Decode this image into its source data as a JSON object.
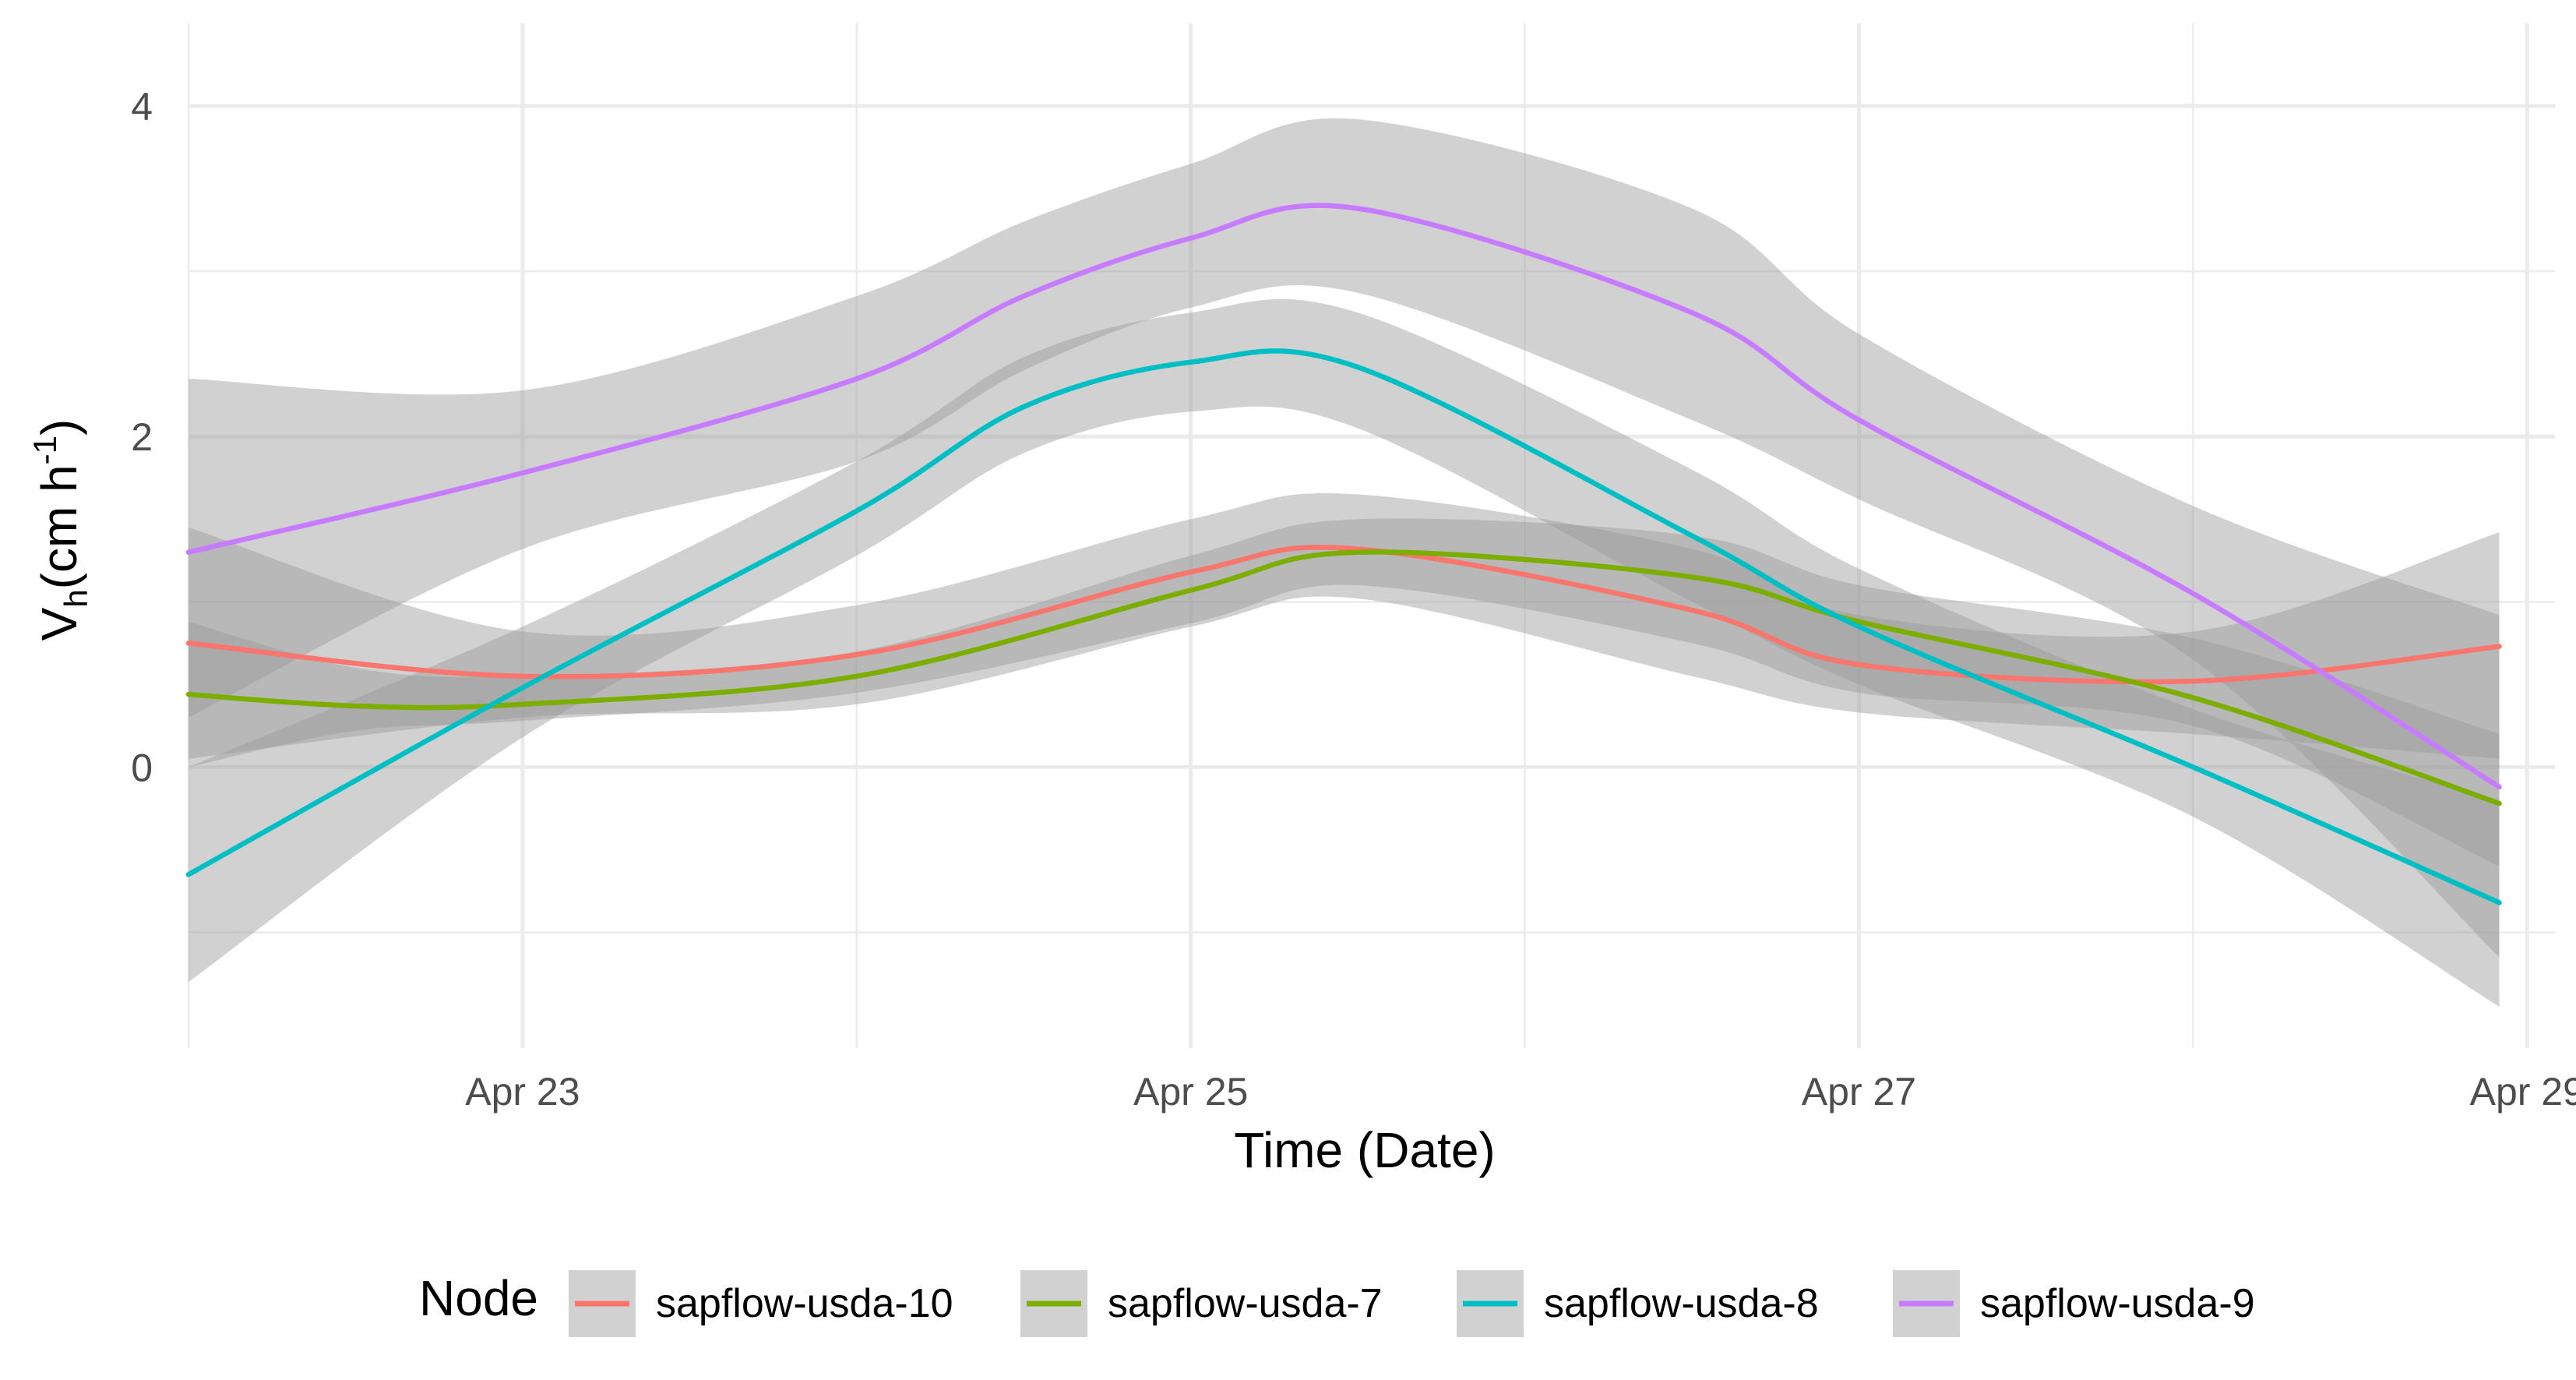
{
  "chart_data": {
    "type": "line",
    "xlabel": "Time (Date)",
    "ylabel": {
      "main": "V",
      "sub": "h",
      "unit_open": "(cm h",
      "unit_sup": "-1",
      "unit_close": ")"
    },
    "x_ticks": [
      "Apr 23",
      "Apr 25",
      "Apr 27",
      "Apr 29"
    ],
    "x_tick_dates": [
      "2023-04-23",
      "2023-04-25",
      "2023-04-27",
      "2023-04-29"
    ],
    "xlim": [
      "2023-04-22 00:00",
      "2023-04-29 02:00"
    ],
    "y_ticks": [
      "0",
      "2",
      "4"
    ],
    "ylim": [
      -1.7,
      4.5
    ],
    "grid": true,
    "legend": {
      "title": "Node",
      "position": "bottom"
    },
    "ribbon_color": "#999999",
    "series": [
      {
        "name": "sapflow-usda-10",
        "color": "#F8766D",
        "x": [
          "2023-04-22 00:00",
          "2023-04-23 00:00",
          "2023-04-24 00:00",
          "2023-04-25 00:00",
          "2023-04-25 12:00",
          "2023-04-26 12:00",
          "2023-04-27 00:00",
          "2023-04-28 00:00",
          "2023-04-28 22:00"
        ],
        "y": [
          0.75,
          0.55,
          0.68,
          1.18,
          1.32,
          0.95,
          0.62,
          0.52,
          0.73
        ],
        "lower": [
          0.05,
          0.3,
          0.38,
          0.85,
          1.02,
          0.55,
          0.33,
          0.2,
          0.05
        ],
        "upper": [
          1.45,
          0.82,
          0.98,
          1.5,
          1.65,
          1.32,
          0.92,
          0.82,
          1.42
        ]
      },
      {
        "name": "sapflow-usda-7",
        "color": "#7CAE00",
        "x": [
          "2023-04-22 00:00",
          "2023-04-22 12:00",
          "2023-04-23 00:00",
          "2023-04-24 00:00",
          "2023-04-25 00:00",
          "2023-04-25 12:00",
          "2023-04-26 12:00",
          "2023-04-27 00:00",
          "2023-04-28 00:00",
          "2023-04-28 22:00"
        ],
        "y": [
          0.44,
          0.37,
          0.38,
          0.55,
          1.07,
          1.3,
          1.15,
          0.88,
          0.42,
          -0.22
        ],
        "lower": [
          0.0,
          0.22,
          0.28,
          0.45,
          0.87,
          1.1,
          0.75,
          0.45,
          0.25,
          -0.6
        ],
        "upper": [
          0.88,
          0.6,
          0.55,
          0.7,
          1.28,
          1.5,
          1.4,
          1.1,
          0.78,
          0.2
        ]
      },
      {
        "name": "sapflow-usda-8",
        "color": "#00BFC4",
        "x": [
          "2023-04-22 00:00",
          "2023-04-23 00:00",
          "2023-04-24 00:00",
          "2023-04-24 12:00",
          "2023-04-25 00:00",
          "2023-04-25 12:00",
          "2023-04-26 12:00",
          "2023-04-27 00:00",
          "2023-04-28 00:00",
          "2023-04-28 22:00"
        ],
        "y": [
          -0.65,
          0.48,
          1.55,
          2.18,
          2.45,
          2.42,
          1.4,
          0.85,
          0.0,
          -0.82
        ],
        "lower": [
          -1.3,
          0.18,
          1.28,
          1.9,
          2.15,
          2.05,
          1.0,
          0.5,
          -0.3,
          -1.45
        ],
        "upper": [
          0.0,
          0.85,
          1.85,
          2.48,
          2.75,
          2.75,
          1.8,
          1.2,
          0.35,
          -0.2
        ]
      },
      {
        "name": "sapflow-usda-9",
        "color": "#C77CFF",
        "x": [
          "2023-04-22 00:00",
          "2023-04-23 00:00",
          "2023-04-24 00:00",
          "2023-04-24 12:00",
          "2023-04-25 00:00",
          "2023-04-25 12:00",
          "2023-04-26 12:00",
          "2023-04-27 00:00",
          "2023-04-28 00:00",
          "2023-04-28 22:00"
        ],
        "y": [
          1.3,
          1.78,
          2.35,
          2.85,
          3.2,
          3.38,
          2.75,
          2.1,
          1.05,
          -0.12
        ],
        "lower": [
          0.3,
          1.32,
          1.85,
          2.4,
          2.78,
          2.87,
          2.1,
          1.62,
          0.65,
          -1.15
        ],
        "upper": [
          2.35,
          2.28,
          2.85,
          3.3,
          3.65,
          3.92,
          3.38,
          2.62,
          1.58,
          0.92
        ]
      }
    ]
  }
}
